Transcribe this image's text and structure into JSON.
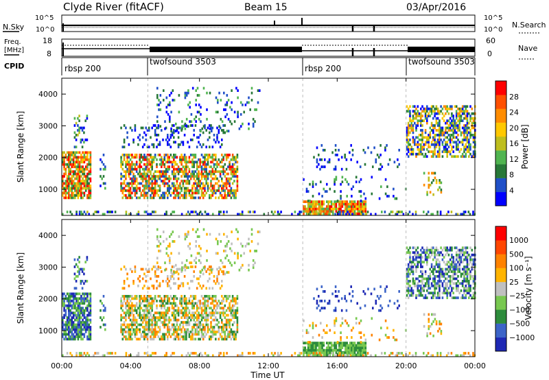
{
  "header": {
    "title": "Clyde River (fitACF)",
    "beam": "Beam 15",
    "date": "03/Apr/2016"
  },
  "noise_panel": {
    "left_label": "N.Sky",
    "right_label": "N.Search",
    "left_ticks": [
      "10^5",
      "10^0"
    ],
    "right_ticks": [
      "10^5",
      "10^0"
    ]
  },
  "freq_panel": {
    "left_label_line1": "Freq.",
    "left_label_line2": "[MHz]",
    "left_ticks": [
      "18",
      "8"
    ],
    "right_label": "Nave",
    "right_ticks": [
      "60",
      "0"
    ]
  },
  "cpid_panel": {
    "label": "CPID",
    "segments": [
      {
        "name": "rbsp 200",
        "start_hour": 0
      },
      {
        "name": "twofsound 3503",
        "start_hour": 5
      },
      {
        "name": "rbsp 200",
        "start_hour": 14
      },
      {
        "name": "twofsound 3503",
        "start_hour": 20
      }
    ]
  },
  "x_axis": {
    "label": "Time UT",
    "ticks": [
      "00:00",
      "04:00",
      "08:00",
      "12:00",
      "16:00",
      "20:00",
      "00:00"
    ]
  },
  "chart_data": [
    {
      "type": "heatmap",
      "name": "power",
      "ylabel": "Slant Range [km]",
      "yticks": [
        "4000",
        "3000",
        "2000",
        "1000"
      ],
      "colorbar_label": "Power [dB]",
      "colorbar_ticks": [
        "28",
        "24",
        "20",
        "16",
        "12",
        "8",
        "4"
      ],
      "colors": [
        "#0000ff",
        "#2050c8",
        "#287838",
        "#50b450",
        "#bebe1e",
        "#ffc800",
        "#ff8c00",
        "#ff5000",
        "#ff0000"
      ],
      "ylim": [
        180,
        4500
      ],
      "xlim_hours": [
        0,
        24
      ],
      "time_boundaries_hours": [
        5,
        14,
        20
      ]
    },
    {
      "type": "heatmap",
      "name": "velocity",
      "ylabel": "Slant Range [km]",
      "yticks": [
        "4000",
        "3000",
        "2000",
        "1000"
      ],
      "colorbar_label": "Velocity [m s⁻¹]",
      "colorbar_ticks": [
        "1000",
        "500",
        "100",
        "25",
        "−25",
        "−100",
        "−500",
        "−1000"
      ],
      "colors": [
        "#1e28b4",
        "#3c64c8",
        "#2d8c3c",
        "#78c850",
        "#c0c0c0",
        "#ffb400",
        "#ff8200",
        "#ff4600",
        "#ff0000"
      ],
      "ylim": [
        180,
        4500
      ],
      "xlim_hours": [
        0,
        24
      ],
      "time_boundaries_hours": [
        5,
        14,
        20
      ]
    }
  ]
}
